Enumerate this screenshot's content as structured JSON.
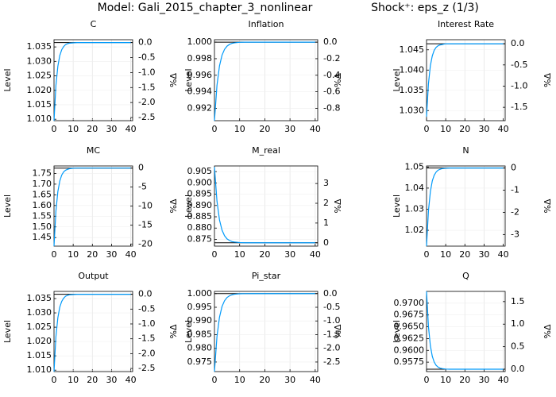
{
  "title": "Model: Gali_2015_chapter_3_nonlinear",
  "shock": "Shock⁺: eps_z  (1/3)",
  "chart_data": [
    {
      "type": "line",
      "title": "C",
      "ylabel": "Level",
      "y2label": "%Δ",
      "x": [
        0,
        1,
        2,
        3,
        4,
        5,
        6,
        7,
        8,
        10,
        12,
        15,
        20,
        30,
        40
      ],
      "xlim": [
        0,
        41
      ],
      "xticks": [
        0,
        10,
        20,
        30,
        40
      ],
      "ylim": [
        1.0095,
        1.0375
      ],
      "yticks": [
        {
          "value": 1.01,
          "label": "1.010"
        },
        1.015,
        {
          "value": 1.02,
          "label": "1.020"
        },
        1.025,
        {
          "value": 1.03,
          "label": "1.030"
        },
        1.035
      ],
      "y2lim": [
        -2.605,
        0.096
      ],
      "y2ticks": [
        {
          "value": 0,
          "label": "0.0"
        },
        -0.5,
        {
          "value": -1,
          "label": "-1.0"
        },
        -1.5,
        {
          "value": -2,
          "label": "-2.0"
        },
        -2.5
      ],
      "steady_state": 1.0365,
      "steady_color": "#000000",
      "grid": true,
      "series": [
        {
          "color": "#009afa",
          "values": [
            1.0095,
            1.0217,
            1.0283,
            1.032,
            1.034,
            1.0351,
            1.0358,
            1.0361,
            1.0363,
            1.0364,
            1.0365,
            1.0365,
            1.0365,
            1.0365,
            1.0365
          ]
        }
      ]
    },
    {
      "type": "line",
      "title": "Inflation",
      "ylabel": "Level",
      "y2label": "%Δ",
      "x": [
        0,
        1,
        2,
        3,
        4,
        5,
        6,
        7,
        8,
        10,
        12,
        15,
        20,
        30,
        40
      ],
      "xlim": [
        0,
        41
      ],
      "xticks": [
        0,
        10,
        20,
        30,
        40
      ],
      "ylim": [
        0.9905,
        1.0003
      ],
      "yticks": [
        0.992,
        0.994,
        0.996,
        0.998,
        {
          "value": 1,
          "label": "1.000"
        }
      ],
      "y2lim": [
        -0.95,
        0.03
      ],
      "y2ticks": [
        {
          "value": 0,
          "label": "0.0"
        },
        -0.2,
        -0.4,
        -0.6,
        -0.8
      ],
      "steady_state": 1,
      "steady_color": "#000000",
      "grid": true,
      "series": [
        {
          "color": "#009afa",
          "values": [
            0.9905,
            0.99478,
            0.99713,
            0.99842,
            0.99913,
            0.99952,
            0.99974,
            0.99986,
            0.99992,
            0.99998,
            1,
            1,
            1,
            1,
            1
          ]
        }
      ]
    },
    {
      "type": "line",
      "title": "Interest Rate",
      "ylabel": "Level",
      "y2label": "%Δ",
      "x": [
        0,
        1,
        2,
        3,
        4,
        5,
        6,
        7,
        8,
        10,
        12,
        15,
        20,
        30,
        40
      ],
      "xlim": [
        0,
        41
      ],
      "xticks": [
        0,
        10,
        20,
        30,
        40
      ],
      "ylim": [
        1.0275,
        1.0475
      ],
      "yticks": [
        {
          "value": 1.03,
          "label": "1.030"
        },
        1.035,
        {
          "value": 1.04,
          "label": "1.040"
        },
        1.045
      ],
      "y2lim": [
        -1.816,
        0.096
      ],
      "y2ticks": [
        {
          "value": 0,
          "label": "0.0"
        },
        -0.5,
        {
          "value": -1,
          "label": "-1.0"
        },
        -1.5
      ],
      "steady_state": 1.0465,
      "steady_color": "#000000",
      "grid": true,
      "series": [
        {
          "color": "#009afa",
          "values": [
            1.0285,
            1.0366,
            1.0411,
            1.0435,
            1.0449,
            1.0456,
            1.046,
            1.0462,
            1.0463,
            1.0465,
            1.0465,
            1.0465,
            1.0465,
            1.0465,
            1.0465
          ]
        }
      ]
    },
    {
      "type": "line",
      "title": "MC",
      "ylabel": "Level",
      "y2label": "%Δ",
      "x": [
        0,
        1,
        2,
        3,
        4,
        5,
        6,
        7,
        8,
        10,
        12,
        15,
        20,
        30,
        40
      ],
      "xlim": [
        0,
        41
      ],
      "xticks": [
        0,
        10,
        20,
        30,
        40
      ],
      "ylim": [
        1.41,
        1.785
      ],
      "yticks": [
        1.45,
        {
          "value": 1.5,
          "label": "1.50"
        },
        1.55,
        {
          "value": 1.6,
          "label": "1.60"
        },
        1.65,
        {
          "value": 1.7,
          "label": "1.70"
        },
        1.75
      ],
      "y2lim": [
        -20.56,
        0.56
      ],
      "y2ticks": [
        0,
        -5,
        -10,
        -15,
        -20
      ],
      "steady_state": 1.775,
      "steady_color": "#000000",
      "grid": true,
      "series": [
        {
          "color": "#009afa",
          "values": [
            1.41,
            1.574,
            1.665,
            1.714,
            1.742,
            1.757,
            1.765,
            1.769,
            1.772,
            1.774,
            1.775,
            1.775,
            1.775,
            1.775,
            1.775
          ]
        }
      ]
    },
    {
      "type": "line",
      "title": "M_real",
      "ylabel": "Level",
      "y2label": "%Δ",
      "x": [
        0,
        1,
        2,
        3,
        4,
        5,
        6,
        7,
        8,
        10,
        12,
        15,
        20,
        30,
        40
      ],
      "xlim": [
        0,
        41
      ],
      "xticks": [
        0,
        10,
        20,
        30,
        40
      ],
      "ylim": [
        0.872,
        0.9075
      ],
      "yticks": [
        0.875,
        {
          "value": 0.88,
          "label": "0.880"
        },
        0.885,
        {
          "value": 0.89,
          "label": "0.890"
        },
        0.895,
        {
          "value": 0.9,
          "label": "0.900"
        },
        0.905
      ],
      "y2lim": [
        -0.17,
        3.89
      ],
      "y2ticks": [
        0,
        1,
        2,
        3
      ],
      "steady_state": 0.8735,
      "steady_color": "#000000",
      "grid": true,
      "series": [
        {
          "color": "#009afa",
          "values": [
            0.907,
            0.8919,
            0.8836,
            0.8791,
            0.8766,
            0.8752,
            0.8745,
            0.874,
            0.8738,
            0.8736,
            0.8735,
            0.8735,
            0.8735,
            0.8735,
            0.8735
          ]
        }
      ]
    },
    {
      "type": "line",
      "title": "N",
      "ylabel": "Level",
      "y2label": "%Δ",
      "x": [
        0,
        1,
        2,
        3,
        4,
        5,
        6,
        7,
        8,
        10,
        12,
        15,
        20,
        30,
        40
      ],
      "xlim": [
        0,
        41
      ],
      "xticks": [
        0,
        10,
        20,
        30,
        40
      ],
      "ylim": [
        1.0125,
        1.0505
      ],
      "yticks": [
        1.02,
        1.03,
        1.04,
        1.05
      ],
      "y2lim": [
        -3.525,
        0.095
      ],
      "y2ticks": [
        0,
        -1,
        -2,
        -3
      ],
      "steady_state": 1.0495,
      "steady_color": "#000000",
      "grid": true,
      "series": [
        {
          "color": "#009afa",
          "values": [
            1.0125,
            1.0292,
            1.0383,
            1.0434,
            1.0461,
            1.0476,
            1.0485,
            1.0489,
            1.0492,
            1.0494,
            1.0495,
            1.0495,
            1.0495,
            1.0495,
            1.0495
          ]
        }
      ]
    },
    {
      "type": "line",
      "title": "Output",
      "ylabel": "Level",
      "y2label": "%Δ",
      "x": [
        0,
        1,
        2,
        3,
        4,
        5,
        6,
        7,
        8,
        10,
        12,
        15,
        20,
        30,
        40
      ],
      "xlim": [
        0,
        41
      ],
      "xticks": [
        0,
        10,
        20,
        30,
        40
      ],
      "ylim": [
        1.0095,
        1.0375
      ],
      "yticks": [
        {
          "value": 1.01,
          "label": "1.010"
        },
        1.015,
        {
          "value": 1.02,
          "label": "1.020"
        },
        1.025,
        {
          "value": 1.03,
          "label": "1.030"
        },
        1.035
      ],
      "y2lim": [
        -2.605,
        0.096
      ],
      "y2ticks": [
        {
          "value": 0,
          "label": "0.0"
        },
        -0.5,
        {
          "value": -1,
          "label": "-1.0"
        },
        -1.5,
        {
          "value": -2,
          "label": "-2.0"
        },
        -2.5
      ],
      "steady_state": 1.0365,
      "steady_color": "#000000",
      "grid": true,
      "series": [
        {
          "color": "#009afa",
          "values": [
            1.0095,
            1.0217,
            1.0283,
            1.032,
            1.034,
            1.0351,
            1.0358,
            1.0361,
            1.0363,
            1.0364,
            1.0365,
            1.0365,
            1.0365,
            1.0365,
            1.0365
          ]
        }
      ]
    },
    {
      "type": "line",
      "title": "Pi_star",
      "ylabel": "Level",
      "y2label": "%Δ",
      "x": [
        0,
        1,
        2,
        3,
        4,
        5,
        6,
        7,
        8,
        10,
        12,
        15,
        20,
        30,
        40
      ],
      "xlim": [
        0,
        41
      ],
      "xticks": [
        0,
        10,
        20,
        30,
        40
      ],
      "ylim": [
        0.9715,
        1.0008
      ],
      "yticks": [
        0.975,
        {
          "value": 0.98,
          "label": "0.980"
        },
        0.985,
        {
          "value": 0.99,
          "label": "0.990"
        },
        0.995,
        {
          "value": 1,
          "label": "1.000"
        }
      ],
      "y2lim": [
        -2.85,
        0.08
      ],
      "y2ticks": [
        {
          "value": 0,
          "label": "0.0"
        },
        -0.5,
        {
          "value": -1,
          "label": "-1.0"
        },
        -1.5,
        {
          "value": -2,
          "label": "-2.0"
        },
        -2.5
      ],
      "steady_state": 1,
      "steady_color": "#000000",
      "grid": true,
      "series": [
        {
          "color": "#009afa",
          "values": [
            0.9715,
            0.98433,
            0.99138,
            0.99527,
            0.99739,
            0.99857,
            0.99921,
            0.99957,
            0.99976,
            0.99993,
            0.99998,
            1,
            1,
            1,
            1
          ]
        }
      ]
    },
    {
      "type": "line",
      "title": "Q",
      "ylabel": "Level",
      "y2label": "%Δ",
      "x": [
        0,
        1,
        2,
        3,
        4,
        5,
        6,
        7,
        8,
        10,
        12,
        15,
        20,
        30,
        40
      ],
      "xlim": [
        0,
        41
      ],
      "xticks": [
        0,
        10,
        20,
        30,
        40
      ],
      "ylim": [
        0.9555,
        0.9725
      ],
      "yticks": [
        0.9575,
        {
          "value": 0.96,
          "label": "0.9600"
        },
        0.9625,
        {
          "value": 0.965,
          "label": "0.9650"
        },
        0.9675,
        {
          "value": 0.97,
          "label": "0.9700"
        }
      ],
      "y2lim": [
        -0.052,
        1.726
      ],
      "y2ticks": [
        {
          "value": 0,
          "label": "0.0"
        },
        0.5,
        {
          "value": 1,
          "label": "1.0"
        },
        1.5
      ],
      "steady_state": 0.956,
      "steady_color": "#000000",
      "grid": true,
      "series": [
        {
          "color": "#009afa",
          "values": [
            0.9725,
            0.96508,
            0.96099,
            0.95874,
            0.95751,
            0.95683,
            0.95646,
            0.95625,
            0.95614,
            0.95604,
            0.95601,
            0.956,
            0.956,
            0.956,
            0.956
          ]
        }
      ]
    }
  ]
}
